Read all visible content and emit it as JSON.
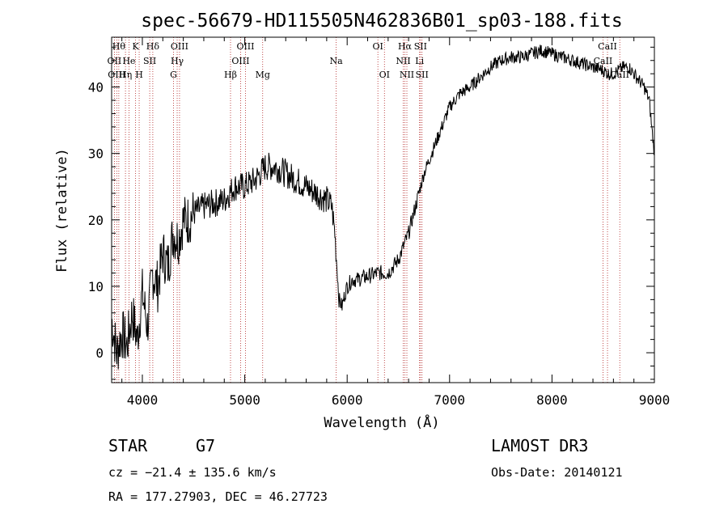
{
  "chart_data": {
    "type": "line",
    "title": "spec-56679-HD115505N462836B01_sp03-188.fits",
    "xlabel": "Wavelength (Å)",
    "ylabel": "Flux (relative)",
    "xlim": [
      3700,
      9000
    ],
    "ylim": [
      -4.5,
      47.5
    ],
    "xticks": [
      4000,
      5000,
      6000,
      7000,
      8000,
      9000
    ],
    "yticks": [
      0,
      10,
      20,
      30,
      40
    ],
    "grid": false,
    "line_color": "#000000",
    "marker_color": "#b22222",
    "series": [
      {
        "x": [
          3700,
          3750,
          3800,
          3850,
          3900,
          3950,
          4000,
          4050,
          4100,
          4150,
          4200,
          4250,
          4300,
          4350,
          4400,
          4450,
          4500,
          4600,
          4700,
          4800,
          4850,
          4900,
          5000,
          5100,
          5200,
          5300,
          5400,
          5500,
          5600,
          5700,
          5800,
          5850,
          5880,
          5900,
          5920,
          5950,
          5980,
          6000,
          6050,
          6100,
          6200,
          6300,
          6350,
          6400,
          6450,
          6500,
          6550,
          6600,
          6650,
          6700,
          6750,
          6800,
          6850,
          6900,
          6950,
          7000,
          7100,
          7200,
          7300,
          7400,
          7500,
          7600,
          7700,
          7800,
          7900,
          8000,
          8100,
          8200,
          8300,
          8400,
          8500,
          8550,
          8600,
          8650,
          8700,
          8750,
          8800,
          8850,
          8900,
          8950,
          8980,
          9000
        ],
        "y": [
          5,
          0,
          3,
          1,
          6,
          2,
          9,
          4,
          12,
          10,
          15,
          13,
          18,
          17,
          20,
          20,
          21,
          22,
          22.5,
          23,
          24,
          25,
          25,
          26,
          28,
          28,
          27,
          26,
          25,
          24,
          23,
          22,
          18,
          13,
          8,
          7,
          9,
          10,
          11,
          11,
          11.5,
          12,
          12,
          12,
          13,
          14,
          16,
          18,
          21,
          24,
          27,
          29,
          31,
          33,
          35,
          37,
          39,
          40,
          41.5,
          43,
          44,
          44.5,
          44.5,
          45,
          45.5,
          45,
          44.5,
          44,
          43.5,
          43,
          42.5,
          42,
          42,
          42.5,
          43,
          43,
          42,
          41,
          40,
          38,
          33,
          30
        ]
      }
    ],
    "lines": [
      {
        "wl": 3727,
        "label": "OII",
        "row": 1
      },
      {
        "wl": 3750,
        "label": "OIII",
        "row": 2
      },
      {
        "wl": 3770,
        "label": "Hθ",
        "row": 0
      },
      {
        "wl": 3835,
        "label": "Hη",
        "row": 2
      },
      {
        "wl": 3869,
        "label": "He",
        "row": 1
      },
      {
        "wl": 3934,
        "label": "K",
        "row": 0
      },
      {
        "wl": 3969,
        "label": "H",
        "row": 2
      },
      {
        "wl": 4072,
        "label": "SII",
        "row": 1
      },
      {
        "wl": 4102,
        "label": "Hδ",
        "row": 0
      },
      {
        "wl": 4304,
        "label": "G",
        "row": 2
      },
      {
        "wl": 4340,
        "label": "Hγ",
        "row": 1
      },
      {
        "wl": 4363,
        "label": "OIII",
        "row": 0
      },
      {
        "wl": 4861,
        "label": "Hβ",
        "row": 2
      },
      {
        "wl": 4959,
        "label": "OIII",
        "row": 1
      },
      {
        "wl": 5007,
        "label": "OIII",
        "row": 0
      },
      {
        "wl": 5175,
        "label": "Mg",
        "row": 2
      },
      {
        "wl": 5893,
        "label": "Na",
        "row": 1
      },
      {
        "wl": 6300,
        "label": "OI",
        "row": 0
      },
      {
        "wl": 6364,
        "label": "OI",
        "row": 2
      },
      {
        "wl": 6548,
        "label": "NII",
        "row": 1
      },
      {
        "wl": 6563,
        "label": "Hα",
        "row": 0
      },
      {
        "wl": 6583,
        "label": "NII",
        "row": 2
      },
      {
        "wl": 6707,
        "label": "Li",
        "row": 1
      },
      {
        "wl": 6716,
        "label": "SII",
        "row": 0
      },
      {
        "wl": 6731,
        "label": "SII",
        "row": 2
      },
      {
        "wl": 8498,
        "label": "CaII",
        "row": 1
      },
      {
        "wl": 8542,
        "label": "CaII",
        "row": 0
      },
      {
        "wl": 8662,
        "label": "CaII",
        "row": 2
      }
    ]
  },
  "info": {
    "object_type": "STAR",
    "subclass": "G7",
    "survey": "LAMOST DR3",
    "cz": "cz = −21.4 ± 135.6 km/s",
    "obs_date": "Obs-Date: 20140121",
    "radec": "RA = 177.27903, DEC =  46.27723"
  }
}
